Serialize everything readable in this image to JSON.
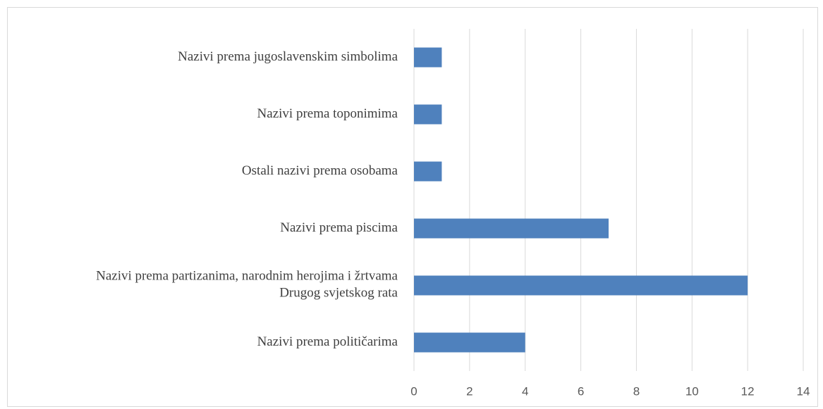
{
  "chart_data": {
    "type": "bar",
    "orientation": "horizontal",
    "categories": [
      "Nazivi prema jugoslavenskim simbolima",
      "Nazivi prema toponimima",
      "Ostali nazivi prema osobama",
      "Nazivi prema piscima",
      "Nazivi prema partizanima, narodnim herojima i žrtvama\nDrugog svjetskog rata",
      "Nazivi prema političarima"
    ],
    "values": [
      1,
      1,
      1,
      7,
      12,
      4
    ],
    "color": "#4f81bd",
    "xlim": [
      0,
      14
    ],
    "xticks": [
      0,
      2,
      4,
      6,
      8,
      10,
      12,
      14
    ],
    "grid": true
  }
}
